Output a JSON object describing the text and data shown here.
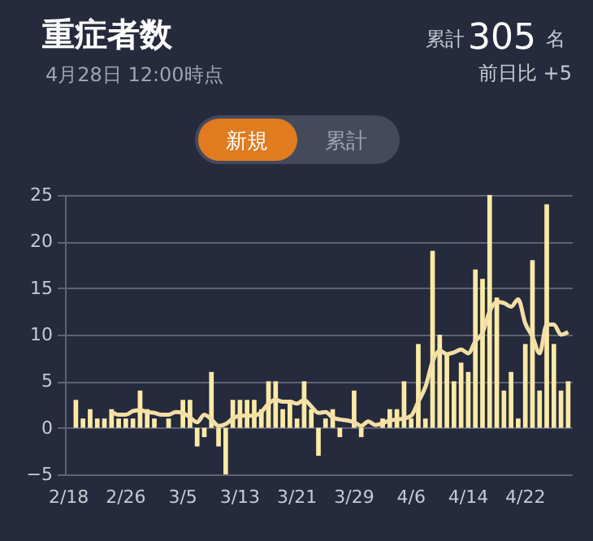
{
  "chart_data": {
    "type": "bar",
    "title": "重症者数",
    "subtitle": "4月28日 12:00時点",
    "annotations": [
      "累計",
      "305",
      "名",
      "前日比 +5",
      "新規",
      "累計"
    ],
    "categories": [
      "2/18",
      null,
      null,
      null,
      null,
      null,
      null,
      null,
      "2/26",
      null,
      null,
      null,
      null,
      null,
      null,
      null,
      "3/5",
      null,
      null,
      null,
      null,
      null,
      null,
      null,
      "3/13",
      null,
      null,
      null,
      null,
      null,
      null,
      null,
      "3/21",
      null,
      null,
      null,
      null,
      null,
      null,
      null,
      "3/29",
      null,
      null,
      null,
      null,
      null,
      null,
      null,
      "4/6",
      null,
      null,
      null,
      null,
      null,
      null,
      null,
      "4/14",
      null,
      null,
      null,
      null,
      null,
      null,
      null,
      "4/22",
      null,
      null,
      null,
      null,
      null,
      null
    ],
    "series": [
      {
        "color": "#fbe9a6",
        "values": [
          0,
          3,
          1,
          2,
          1,
          1,
          2,
          1,
          1,
          1,
          4,
          2,
          1,
          0,
          1,
          0,
          3,
          3,
          -2,
          -1,
          6,
          -2,
          -5,
          3,
          3,
          3,
          3,
          2,
          5,
          5,
          2,
          3,
          1,
          5,
          2,
          -3,
          1,
          2,
          -1,
          0,
          4,
          -1,
          0,
          0,
          1,
          2,
          2,
          5,
          1,
          9,
          1,
          19,
          10,
          8,
          5,
          7,
          6,
          17,
          16,
          25,
          14,
          4,
          6,
          1,
          9,
          18,
          4,
          24,
          9,
          4,
          5
        ]
      },
      {
        "type": "line",
        "color": "#f3dfa4",
        "values": [
          null,
          null,
          null,
          null,
          null,
          null,
          1.7,
          1.4,
          1.4,
          1.8,
          1.9,
          1.7,
          1.6,
          1.4,
          1.4,
          1.7,
          1.6,
          1.1,
          0.6,
          1.4,
          0.9,
          0.2,
          0.4,
          1.0,
          1.3,
          1.3,
          1.3,
          1.7,
          2.6,
          3.0,
          2.8,
          2.8,
          2.6,
          3.0,
          2.3,
          1.6,
          1.7,
          1.1,
          0.9,
          0.8,
          0.6,
          0.2,
          0.7,
          0.3,
          0.5,
          0.8,
          0.9,
          1.0,
          1.3,
          2.8,
          4.4,
          7.1,
          8.3,
          7.9,
          8.1,
          8.4,
          8.0,
          9.3,
          10.2,
          12.5,
          13.5,
          13.4,
          13.0,
          13.8,
          11.2,
          9.8,
          8.0,
          11.1,
          11.1,
          10.0,
          10.3
        ]
      }
    ],
    "ylim": [
      -5,
      25
    ],
    "yticks": [
      -5,
      0,
      5,
      10,
      15,
      20,
      25
    ],
    "grid": "y"
  }
}
